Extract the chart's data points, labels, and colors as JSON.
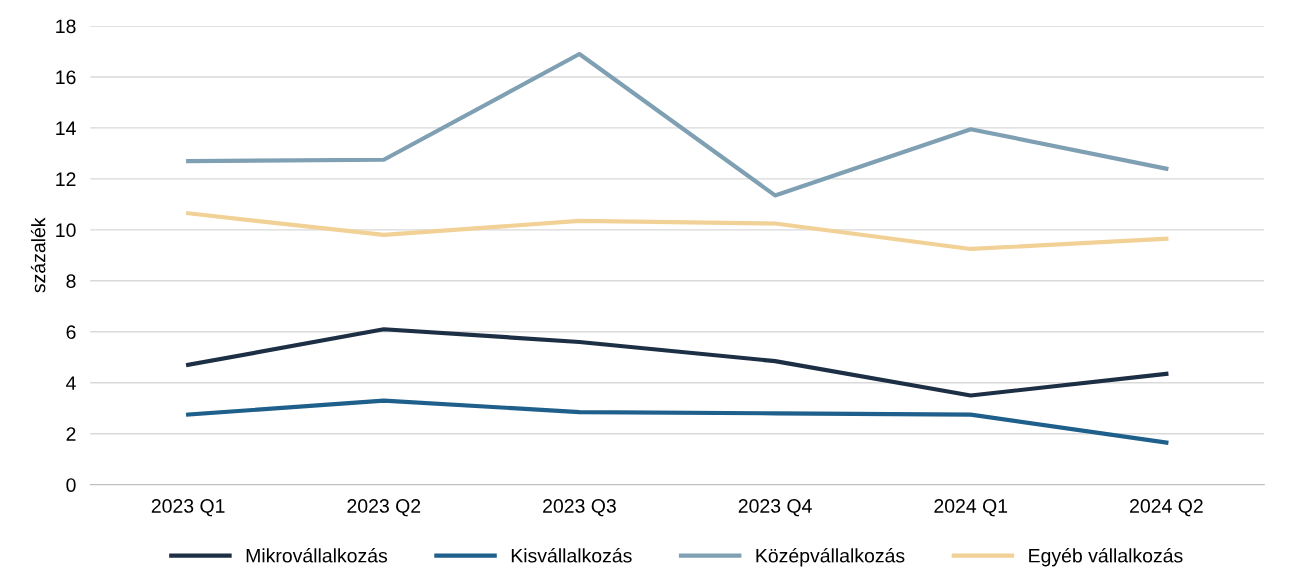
{
  "chart_data": {
    "type": "line",
    "ylabel": "százalék",
    "categories": [
      "2023 Q1",
      "2023 Q2",
      "2023 Q3",
      "2023 Q4",
      "2024 Q1",
      "2024 Q2"
    ],
    "series": [
      {
        "name": "Mikrovállalkozás",
        "color": "#1d2f45",
        "values": [
          4.7,
          6.1,
          5.6,
          4.85,
          3.5,
          4.35
        ]
      },
      {
        "name": "Kisvállalkozás",
        "color": "#1f5f8b",
        "values": [
          2.75,
          3.3,
          2.85,
          2.8,
          2.75,
          1.65
        ]
      },
      {
        "name": "Középvállalkozás",
        "color": "#7f9fb3",
        "values": [
          12.7,
          12.75,
          16.9,
          11.35,
          13.95,
          12.4
        ]
      },
      {
        "name": "Egyéb vállalkozás",
        "color": "#f2d196",
        "values": [
          10.65,
          9.8,
          10.35,
          10.25,
          9.25,
          9.65
        ]
      }
    ],
    "ylim": [
      0,
      18
    ],
    "yticks": [
      0,
      2,
      4,
      6,
      8,
      10,
      12,
      14,
      16,
      18
    ],
    "grid": "y",
    "legend": "bottom",
    "marker": "none",
    "line_style": "solid"
  }
}
